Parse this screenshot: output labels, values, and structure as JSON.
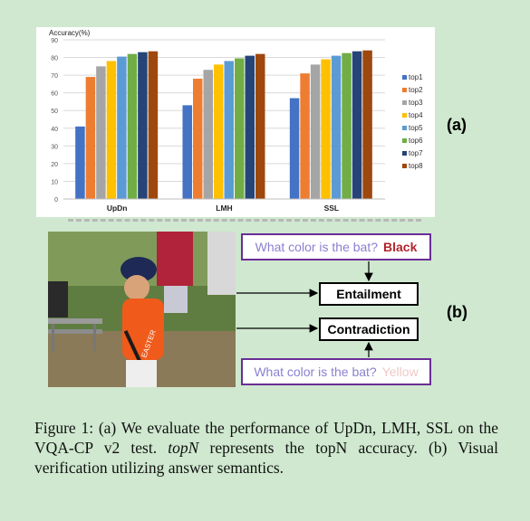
{
  "chart_data": {
    "type": "bar",
    "ylabel": "Accuracy(%)",
    "ylim": [
      0,
      90
    ],
    "yticks": [
      0,
      10,
      20,
      30,
      40,
      50,
      60,
      70,
      80,
      90
    ],
    "categories": [
      "UpDn",
      "LMH",
      "SSL"
    ],
    "legend_position": "right",
    "grid": true,
    "series": [
      {
        "name": "top1",
        "color": "#4472c4",
        "values": [
          41,
          53,
          57
        ]
      },
      {
        "name": "top2",
        "color": "#ed7d31",
        "values": [
          69,
          68,
          71
        ]
      },
      {
        "name": "top3",
        "color": "#a5a5a5",
        "values": [
          75,
          73,
          76
        ]
      },
      {
        "name": "top4",
        "color": "#ffc000",
        "values": [
          78,
          76,
          79
        ]
      },
      {
        "name": "top5",
        "color": "#5b9bd5",
        "values": [
          80.5,
          78,
          81
        ]
      },
      {
        "name": "top6",
        "color": "#70ad47",
        "values": [
          82,
          79.5,
          82.5
        ]
      },
      {
        "name": "top7",
        "color": "#264478",
        "values": [
          83,
          81,
          83.5
        ]
      },
      {
        "name": "top8",
        "color": "#9e480e",
        "values": [
          83.5,
          82,
          84
        ]
      }
    ]
  },
  "labels": {
    "a": "(a)",
    "b": "(b)"
  },
  "figure_b": {
    "question": "What color is the bat?",
    "answer_top": "Black",
    "answer_bottom": "Yellow",
    "entailment": "Entailment",
    "contradiction": "Contradiction",
    "shirt_text": "EASTER"
  },
  "caption": {
    "part1": "Figure 1: (a) We evaluate the performance of UpDn, LMH, SSL on the VQA-CP v2 test.",
    "topn": "topN",
    "part2": "represents the topN accuracy. (b) Visual verification utilizing answer semantics."
  },
  "colors": {
    "background": "#cfe8cf",
    "box_border": "#6a2d96",
    "answer_black": "#b0242c",
    "answer_yellow": "#f0c8c8"
  }
}
